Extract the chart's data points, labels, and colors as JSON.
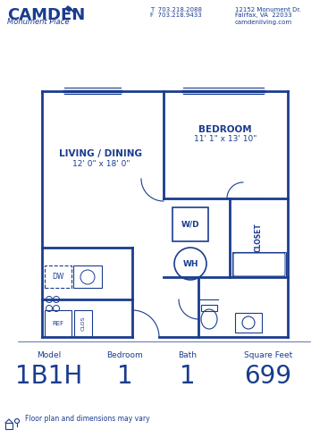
{
  "bg_color": "#ffffff",
  "blue": "#1a3c8f",
  "header": {
    "brand": "CAMDEN",
    "sub": "Monument Place",
    "phone1": "T  703.218.2088",
    "phone2": "F  703.218.9433",
    "addr1": "12152 Monument Dr.",
    "addr2": "Fairfax, VA  22033",
    "web": "camdenliving.com"
  },
  "footer": {
    "model_label": "Model",
    "model_val": "1B1H",
    "bed_label": "Bedroom",
    "bed_val": "1",
    "bath_label": "Bath",
    "bath_val": "1",
    "sqft_label": "Square Feet",
    "sqft_val": "699"
  },
  "disclaimer": "Floor plan and dimensions may vary",
  "rooms": {
    "living_label": "LIVING / DINING",
    "living_dim": "12' 0\" x 18' 0\"",
    "bed_label": "BEDROOM",
    "bed_dim": "11' 1\" x 13' 10\""
  }
}
